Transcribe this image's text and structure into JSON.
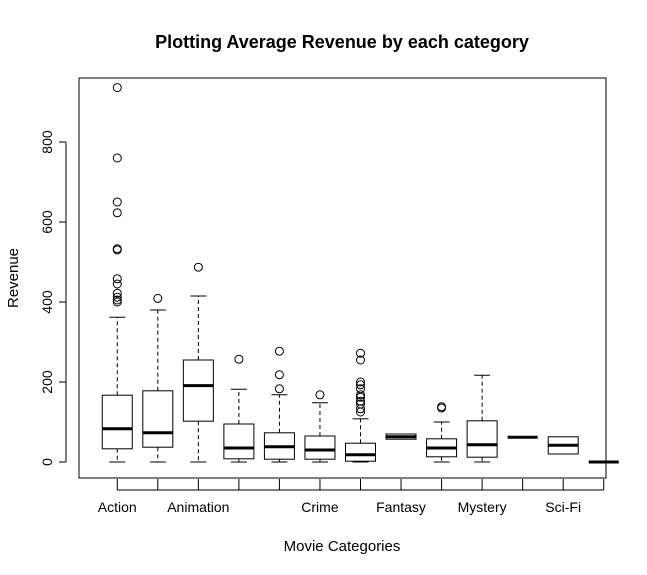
{
  "chart_data": {
    "type": "boxplot",
    "title": "Plotting Average Revenue by each category",
    "xlabel": "Movie Categories",
    "ylabel": "Revenue",
    "ylim": [
      -40,
      960
    ],
    "y_ticks": [
      0,
      200,
      400,
      600,
      800
    ],
    "grid": false,
    "legend": "none",
    "box_count": 13,
    "x_tick_labels": [
      {
        "box": 1,
        "label": "Action"
      },
      {
        "box": 3,
        "label": "Animation"
      },
      {
        "box": 6,
        "label": "Crime"
      },
      {
        "box": 8,
        "label": "Fantasy"
      },
      {
        "box": 10,
        "label": "Mystery"
      },
      {
        "box": 12,
        "label": "Sci-Fi"
      }
    ],
    "boxes": [
      {
        "whisker_low": 0,
        "q1": 33,
        "median": 83,
        "q3": 167,
        "whisker_high": 362,
        "outliers": [
          400,
          405,
          412,
          422,
          445,
          458,
          530,
          533,
          623,
          650,
          760,
          936
        ]
      },
      {
        "whisker_low": 0,
        "q1": 37,
        "median": 73,
        "q3": 178,
        "whisker_high": 380,
        "outliers": [
          409
        ]
      },
      {
        "whisker_low": 0,
        "q1": 102,
        "median": 191,
        "q3": 255,
        "whisker_high": 415,
        "outliers": [
          487
        ]
      },
      {
        "whisker_low": 0,
        "q1": 8,
        "median": 35,
        "q3": 95,
        "whisker_high": 182,
        "outliers": [
          257
        ]
      },
      {
        "whisker_low": 0,
        "q1": 7,
        "median": 38,
        "q3": 73,
        "whisker_high": 168,
        "outliers": [
          183,
          218,
          277
        ]
      },
      {
        "whisker_low": 0,
        "q1": 7,
        "median": 30,
        "q3": 65,
        "whisker_high": 148,
        "outliers": [
          168
        ]
      },
      {
        "whisker_low": 0,
        "q1": 2,
        "median": 18,
        "q3": 47,
        "whisker_high": 108,
        "outliers": [
          125,
          133,
          145,
          152,
          162,
          168,
          183,
          193,
          200,
          255,
          272
        ]
      },
      {
        "whisker_low": 57,
        "q1": 57,
        "median": 63,
        "q3": 70,
        "whisker_high": 70,
        "outliers": []
      },
      {
        "whisker_low": 0,
        "q1": 13,
        "median": 35,
        "q3": 58,
        "whisker_high": 100,
        "outliers": [
          135,
          138
        ]
      },
      {
        "whisker_low": 0,
        "q1": 12,
        "median": 43,
        "q3": 103,
        "whisker_high": 217,
        "outliers": []
      },
      {
        "whisker_low": 62,
        "q1": 62,
        "median": 62,
        "q3": 62,
        "whisker_high": 62,
        "outliers": []
      },
      {
        "whisker_low": 20,
        "q1": 20,
        "median": 42,
        "q3": 63,
        "whisker_high": 63,
        "outliers": []
      },
      {
        "whisker_low": 0,
        "q1": 0,
        "median": 0,
        "q3": 0,
        "whisker_high": 0,
        "outliers": []
      }
    ]
  }
}
